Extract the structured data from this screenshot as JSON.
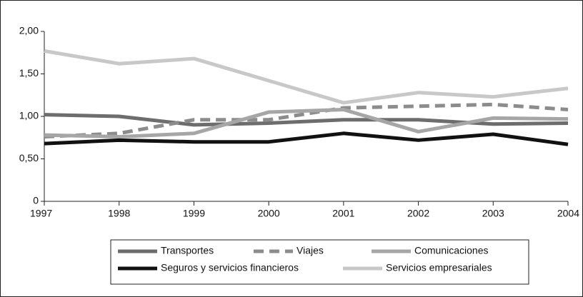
{
  "chart_data": {
    "type": "line",
    "categories": [
      "1997",
      "1998",
      "1999",
      "2000",
      "2001",
      "2002",
      "2003",
      "2004"
    ],
    "series": [
      {
        "name": "Transportes",
        "color": "#6d6d6d",
        "dashed": false,
        "values": [
          1.02,
          1.0,
          0.9,
          0.92,
          0.96,
          0.96,
          0.91,
          0.92
        ]
      },
      {
        "name": "Viajes",
        "color": "#8c8c8c",
        "dashed": true,
        "values": [
          0.76,
          0.8,
          0.96,
          0.96,
          1.1,
          1.12,
          1.14,
          1.08
        ]
      },
      {
        "name": "Comunicaciones",
        "color": "#a6a6a6",
        "dashed": false,
        "values": [
          0.78,
          0.76,
          0.8,
          1.05,
          1.08,
          0.82,
          0.98,
          0.97
        ]
      },
      {
        "name": "Seguros y servicios financieros",
        "color": "#111111",
        "dashed": false,
        "values": [
          0.68,
          0.72,
          0.7,
          0.7,
          0.8,
          0.72,
          0.79,
          0.67
        ]
      },
      {
        "name": "Servicios empresariales",
        "color": "#c8c8c8",
        "dashed": false,
        "values": [
          1.77,
          1.62,
          1.68,
          1.42,
          1.16,
          1.28,
          1.23,
          1.33
        ]
      }
    ],
    "ylim": [
      0,
      2
    ],
    "yticks": [
      0,
      {
        "value": 0.5,
        "label": "0,50"
      },
      {
        "value": 1,
        "label": "1,00"
      },
      {
        "value": 1.5,
        "label": "1,50"
      },
      {
        "value": 2,
        "label": "2,00"
      }
    ],
    "grid": false
  }
}
